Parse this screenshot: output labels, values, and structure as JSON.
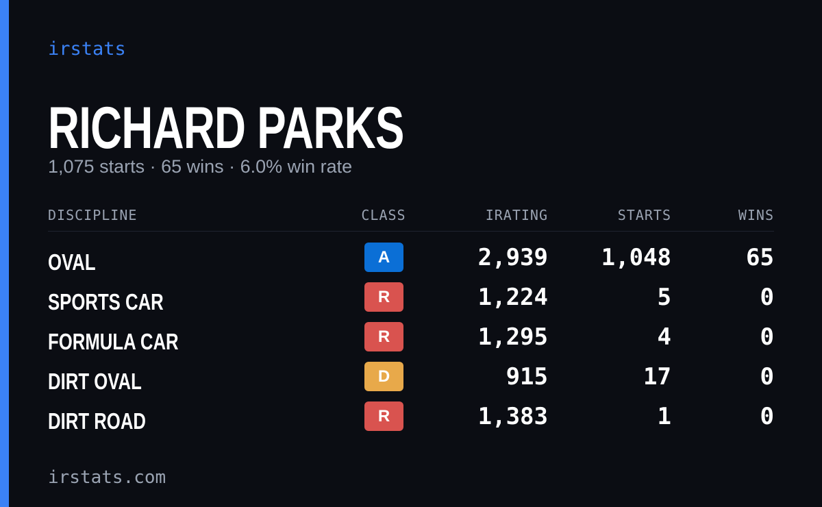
{
  "header": {
    "brand": "irstats",
    "name": "RICHARD PARKS",
    "subtitle": "1,075 starts · 65 wins · 6.0% win rate"
  },
  "table": {
    "columns": [
      "DISCIPLINE",
      "CLASS",
      "IRATING",
      "STARTS",
      "WINS"
    ],
    "rows": [
      {
        "discipline": "OVAL",
        "class": "A",
        "class_color": "#0b6fd6",
        "irating": "2,939",
        "starts": "1,048",
        "wins": "65"
      },
      {
        "discipline": "SPORTS CAR",
        "class": "R",
        "class_color": "#d9534f",
        "irating": "1,224",
        "starts": "5",
        "wins": "0"
      },
      {
        "discipline": "FORMULA CAR",
        "class": "R",
        "class_color": "#d9534f",
        "irating": "1,295",
        "starts": "4",
        "wins": "0"
      },
      {
        "discipline": "DIRT OVAL",
        "class": "D",
        "class_color": "#e8a94a",
        "irating": "915",
        "starts": "17",
        "wins": "0"
      },
      {
        "discipline": "DIRT ROAD",
        "class": "R",
        "class_color": "#d9534f",
        "irating": "1,383",
        "starts": "1",
        "wins": "0"
      }
    ]
  },
  "footer": {
    "url": "irstats.com"
  }
}
